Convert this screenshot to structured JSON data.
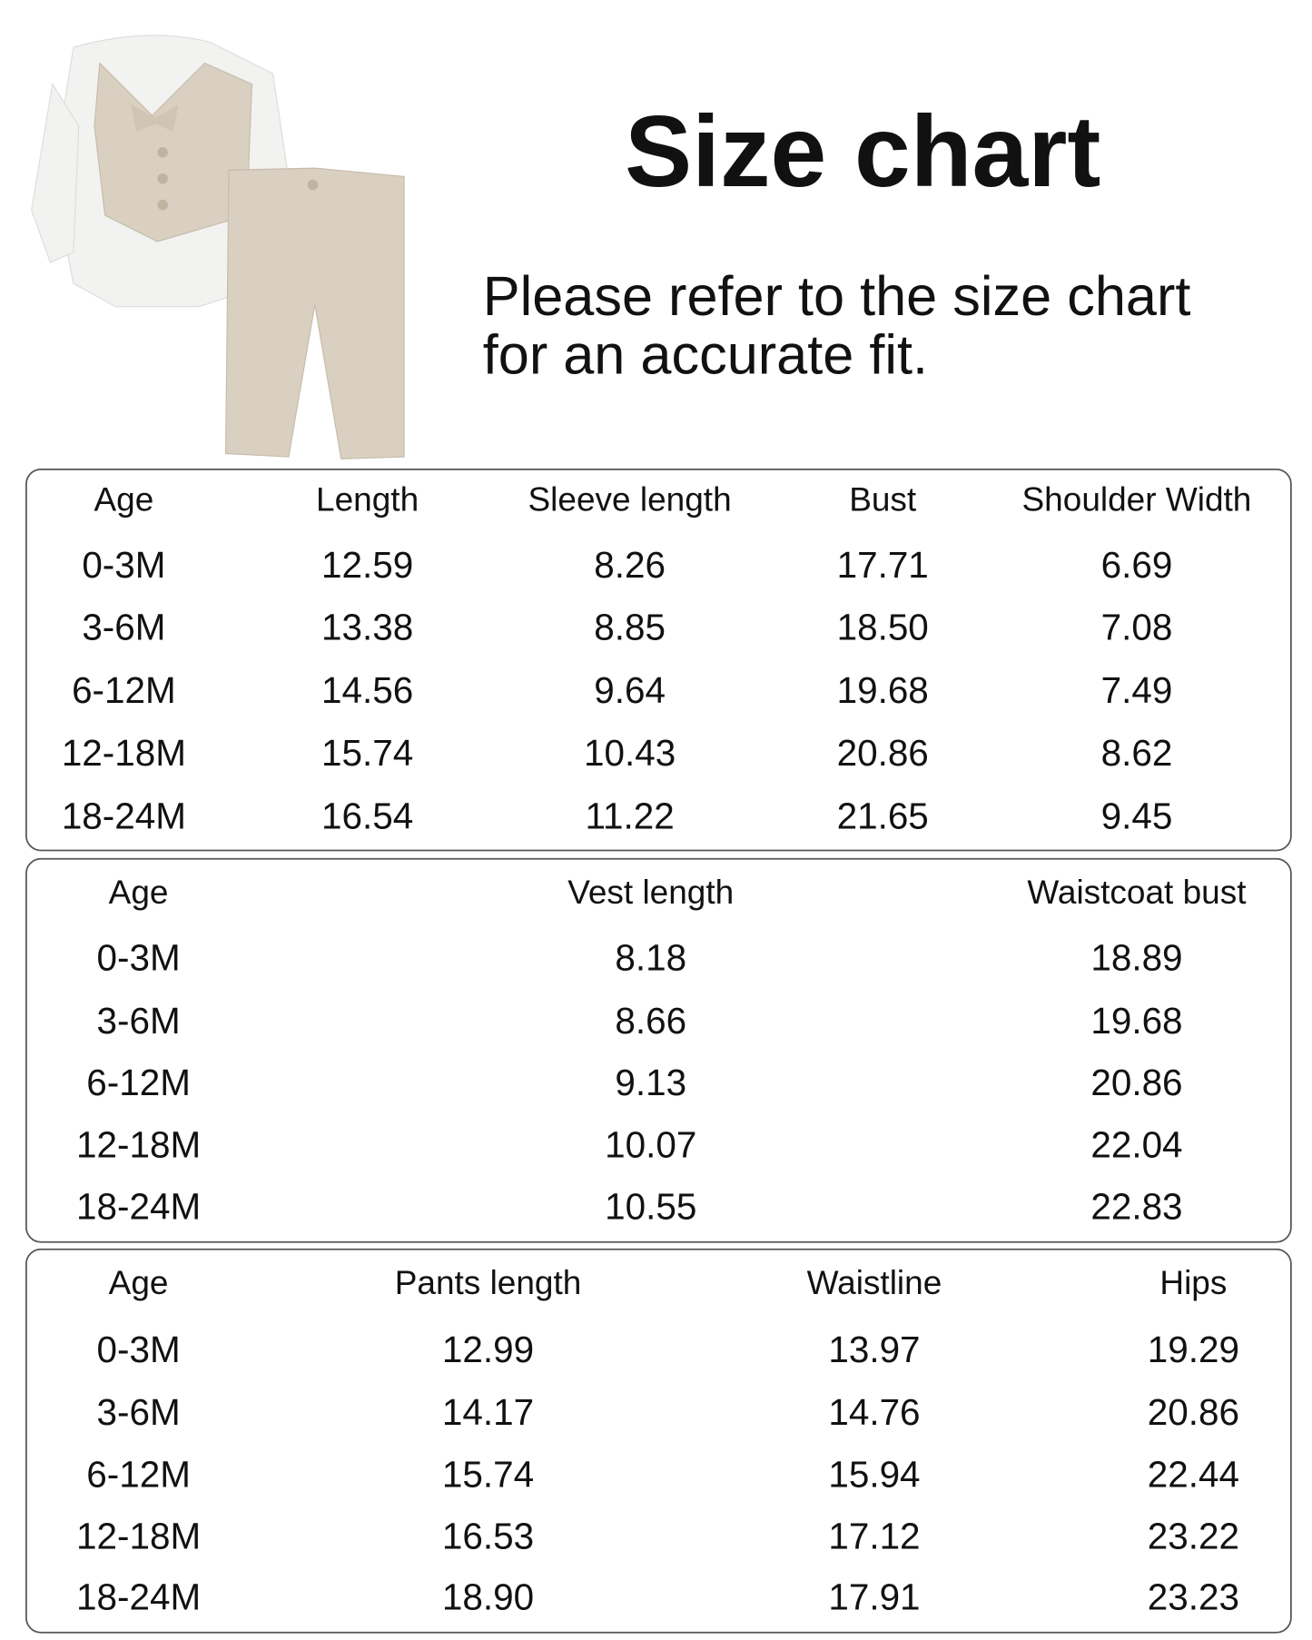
{
  "header": {
    "title": "Size chart",
    "subtitle_lines": [
      "Please refer to the size chart",
      "for an accurate fit."
    ]
  },
  "tables": [
    {
      "headers": [
        "Age",
        "Length",
        "Sleeve length",
        "Bust",
        "Shoulder Width"
      ],
      "rows": [
        [
          "0-3M",
          "12.59",
          "8.26",
          "17.71",
          "6.69"
        ],
        [
          "3-6M",
          "13.38",
          "8.85",
          "18.50",
          "7.08"
        ],
        [
          "6-12M",
          "14.56",
          "9.64",
          "19.68",
          "7.49"
        ],
        [
          "12-18M",
          "15.74",
          "10.43",
          "20.86",
          "8.62"
        ],
        [
          "18-24M",
          "16.54",
          "11.22",
          "21.65",
          "9.45"
        ]
      ]
    },
    {
      "headers": [
        "Age",
        "Vest length",
        "Waistcoat bust"
      ],
      "rows": [
        [
          "0-3M",
          "8.18",
          "18.89"
        ],
        [
          "3-6M",
          "8.66",
          "19.68"
        ],
        [
          "6-12M",
          "9.13",
          "20.86"
        ],
        [
          "12-18M",
          "10.07",
          "22.04"
        ],
        [
          "18-24M",
          "10.55",
          "22.83"
        ]
      ]
    },
    {
      "headers": [
        "Age",
        "Pants length",
        "Waistline",
        "Hips"
      ],
      "rows": [
        [
          "0-3M",
          "12.99",
          "13.97",
          "19.29"
        ],
        [
          "3-6M",
          "14.17",
          "14.76",
          "20.86"
        ],
        [
          "6-12M",
          "15.74",
          "15.94",
          "22.44"
        ],
        [
          "12-18M",
          "16.53",
          "17.12",
          "23.22"
        ],
        [
          "18-24M",
          "18.90",
          "17.91",
          "23.23"
        ]
      ]
    }
  ]
}
